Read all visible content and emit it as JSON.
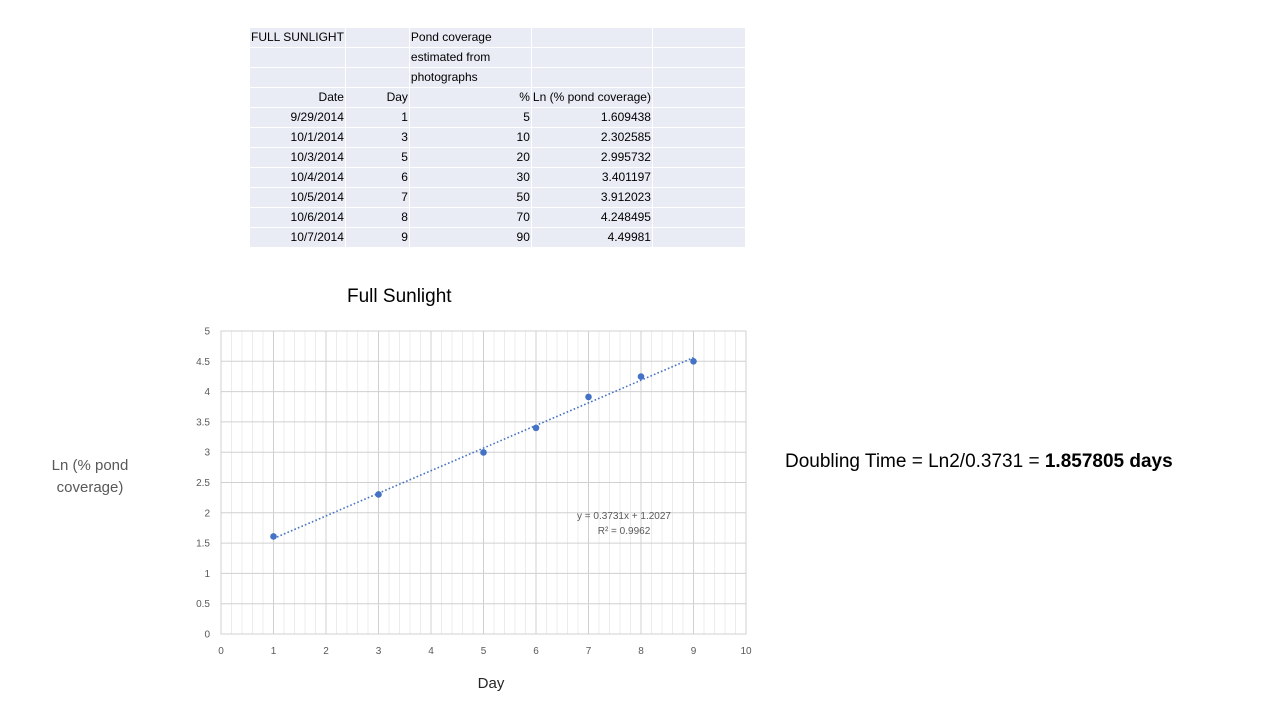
{
  "table": {
    "header_rows": [
      [
        "FULL SUNLIGHT",
        "",
        "Pond coverage",
        "",
        ""
      ],
      [
        "",
        "",
        "estimated from",
        "",
        ""
      ],
      [
        "",
        "",
        "photographs",
        "",
        ""
      ]
    ],
    "column_headers": [
      "Date",
      "Day",
      "%",
      "Ln (% pond coverage)",
      ""
    ],
    "rows": [
      [
        "9/29/2014",
        "1",
        "5",
        "1.609438"
      ],
      [
        "10/1/2014",
        "3",
        "10",
        "2.302585"
      ],
      [
        "10/3/2014",
        "5",
        "20",
        "2.995732"
      ],
      [
        "10/4/2014",
        "6",
        "30",
        "3.401197"
      ],
      [
        "10/5/2014",
        "7",
        "50",
        "3.912023"
      ],
      [
        "10/6/2014",
        "8",
        "70",
        "4.248495"
      ],
      [
        "10/7/2014",
        "9",
        "90",
        "4.49981"
      ]
    ]
  },
  "chart_data": {
    "type": "scatter",
    "title": "Full Sunlight",
    "xlabel": "Day",
    "ylabel": "Ln (% pond coverage)",
    "xlim": [
      0,
      10
    ],
    "ylim": [
      0,
      5
    ],
    "x_ticks": [
      0,
      1,
      2,
      3,
      4,
      5,
      6,
      7,
      8,
      9,
      10
    ],
    "y_ticks": [
      0,
      0.5,
      1,
      1.5,
      2,
      2.5,
      3,
      3.5,
      4,
      4.5,
      5
    ],
    "grid": true,
    "series": [
      {
        "x": [
          1,
          3,
          5,
          6,
          7,
          8,
          9
        ],
        "y": [
          1.609438,
          2.302585,
          2.995732,
          3.401197,
          3.912023,
          4.248495,
          4.49981
        ],
        "color": "#4472c4"
      }
    ],
    "trendline": {
      "type": "linear",
      "slope": 0.3731,
      "intercept": 1.2027,
      "x_range": [
        1,
        9
      ],
      "style": "dotted",
      "color": "#4472c4",
      "equation_label": "y = 0.3731x + 1.2027",
      "r2_label": "R² = 0.9962"
    }
  },
  "doubling_text": {
    "prefix": "Doubling Time = Ln2/0.3731 = ",
    "value": "1.857805 days"
  }
}
